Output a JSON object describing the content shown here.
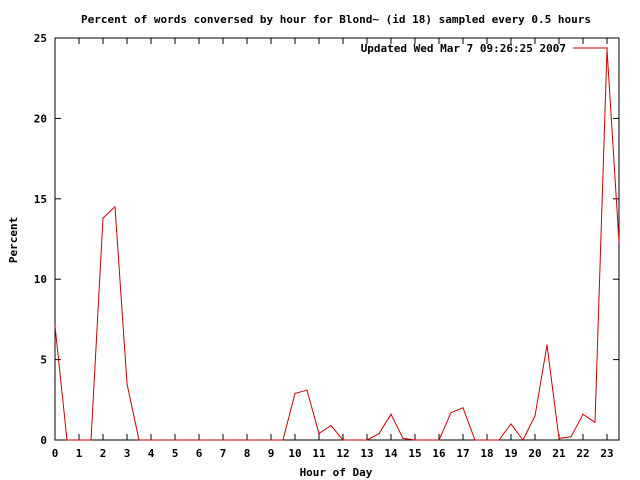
{
  "chart_data": {
    "type": "line",
    "title": "Percent of words conversed by hour for Blond~ (id 18) sampled every 0.5 hours",
    "xlabel": "Hour of Day",
    "ylabel": "Percent",
    "xlim": [
      0,
      23.5
    ],
    "ylim": [
      0,
      25
    ],
    "xticks": [
      "0",
      "1",
      "2",
      "3",
      "4",
      "5",
      "6",
      "7",
      "8",
      "9",
      "10",
      "11",
      "12",
      "13",
      "14",
      "15",
      "16",
      "17",
      "18",
      "19",
      "20",
      "21",
      "22",
      "23"
    ],
    "yticks": [
      "0",
      "5",
      "10",
      "15",
      "20",
      "25"
    ],
    "grid": false,
    "legend_position": "top-right",
    "series": [
      {
        "name": "Updated Wed Mar  7 09:26:25 2007",
        "color": "#cc0000",
        "x": [
          0,
          0.5,
          1,
          1.5,
          2,
          2.5,
          3,
          3.5,
          4,
          4.5,
          5,
          5.5,
          6,
          6.5,
          7,
          7.5,
          8,
          8.5,
          9,
          9.5,
          10,
          10.5,
          11,
          11.5,
          12,
          12.5,
          13,
          13.5,
          14,
          14.5,
          15,
          15.5,
          16,
          16.5,
          17,
          17.5,
          18,
          18.5,
          19,
          19.5,
          20,
          20.5,
          21,
          21.5,
          22,
          22.5,
          23,
          23.5
        ],
        "y": [
          7.1,
          0,
          0,
          0,
          13.8,
          14.5,
          3.5,
          0,
          0,
          0,
          0,
          0,
          0,
          0,
          0,
          0,
          0,
          0,
          0,
          0,
          2.9,
          3.1,
          0.4,
          0.9,
          0,
          0,
          0,
          0.4,
          1.6,
          0.1,
          0,
          0,
          0,
          1.7,
          2.0,
          0,
          0,
          0,
          1.0,
          0,
          1.5,
          5.9,
          0.1,
          0.2,
          1.6,
          1.1,
          24.3,
          12.3
        ]
      }
    ]
  }
}
